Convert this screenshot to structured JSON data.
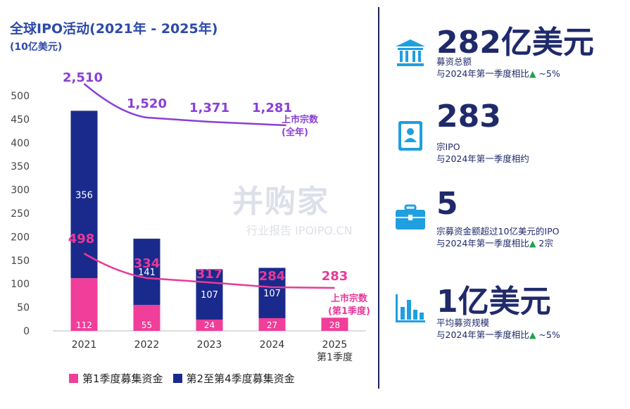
{
  "header": {
    "title": "全球IPO活动(2021年 - 2025年)",
    "unit": "(10亿美元)"
  },
  "chart_data": {
    "type": "bar",
    "categories": [
      "2021",
      "2022",
      "2023",
      "2024",
      "2025"
    ],
    "category_sub": [
      "",
      "",
      "",
      "",
      "第1季度"
    ],
    "ylim": [
      0,
      500
    ],
    "yticks": [
      "0",
      "50",
      "100",
      "150",
      "200",
      "250",
      "300",
      "350",
      "400",
      "450",
      "500"
    ],
    "series": [
      {
        "name": "第1季度募集资金",
        "values": [
          112,
          55,
          24,
          27,
          28
        ],
        "color": "#f03e9a"
      },
      {
        "name": "第2至第4季度募集资金",
        "values": [
          356,
          141,
          107,
          107,
          0
        ],
        "color": "#1a2a8c"
      }
    ],
    "bar_labels_q1": [
      "112",
      "55",
      "24",
      "27",
      "28"
    ],
    "bar_labels_q24": [
      "356",
      "141",
      "107",
      "107",
      ""
    ],
    "lines": [
      {
        "name": "上市宗数 (全年)",
        "label_line1": "上市宗数",
        "label_line2": "(全年)",
        "values": [
          2510,
          1520,
          1371,
          1281
        ],
        "labels": [
          "2,510",
          "1,520",
          "1,371",
          "1,281"
        ],
        "color": "#8a3fd6"
      },
      {
        "name": "上市宗数 (第1季度)",
        "label_line1": "上市宗数",
        "label_line2": "(第1季度)",
        "values": [
          498,
          334,
          317,
          284,
          283
        ],
        "labels": [
          "498",
          "334",
          "317",
          "284",
          "283"
        ],
        "color": "#e8399a"
      }
    ]
  },
  "legend": {
    "q1_label": "第1季度募集资金",
    "q24_label": "第2至第4季度募集资金",
    "q1_color": "#f03e9a",
    "q24_color": "#1a2a8c"
  },
  "stats": [
    {
      "icon": "bank-icon",
      "value": "282亿美元",
      "label1": "募资总额",
      "label2_prefix": "与2024年第一季度相比",
      "label2_suffix": " ~5%",
      "arrow": "▲"
    },
    {
      "icon": "id-card-icon",
      "value": "283",
      "label1": "宗IPO",
      "label2_prefix": "与2024年第一季度相约",
      "label2_suffix": "",
      "arrow": ""
    },
    {
      "icon": "briefcase-icon",
      "value": "5",
      "label1": "宗募资金额超过10亿美元的IPO",
      "label2_prefix": "与2024年第一季度相比",
      "label2_suffix": " 2宗",
      "arrow": "▲"
    },
    {
      "icon": "bar-chart-icon",
      "value": "1亿美元",
      "label1": "平均募资规模",
      "label2_prefix": "与2024年第一季度相比",
      "label2_suffix": " ~5%",
      "arrow": "▲"
    }
  ],
  "watermark": {
    "line1": "并购家",
    "line2": "行业报告 IPOIPO.CN"
  },
  "colors": {
    "navy": "#1a2a8c",
    "pink": "#f03e9a",
    "purple": "#8a3fd6",
    "up_green": "#1aa34a",
    "icon_blue": "#1f9fe0"
  }
}
